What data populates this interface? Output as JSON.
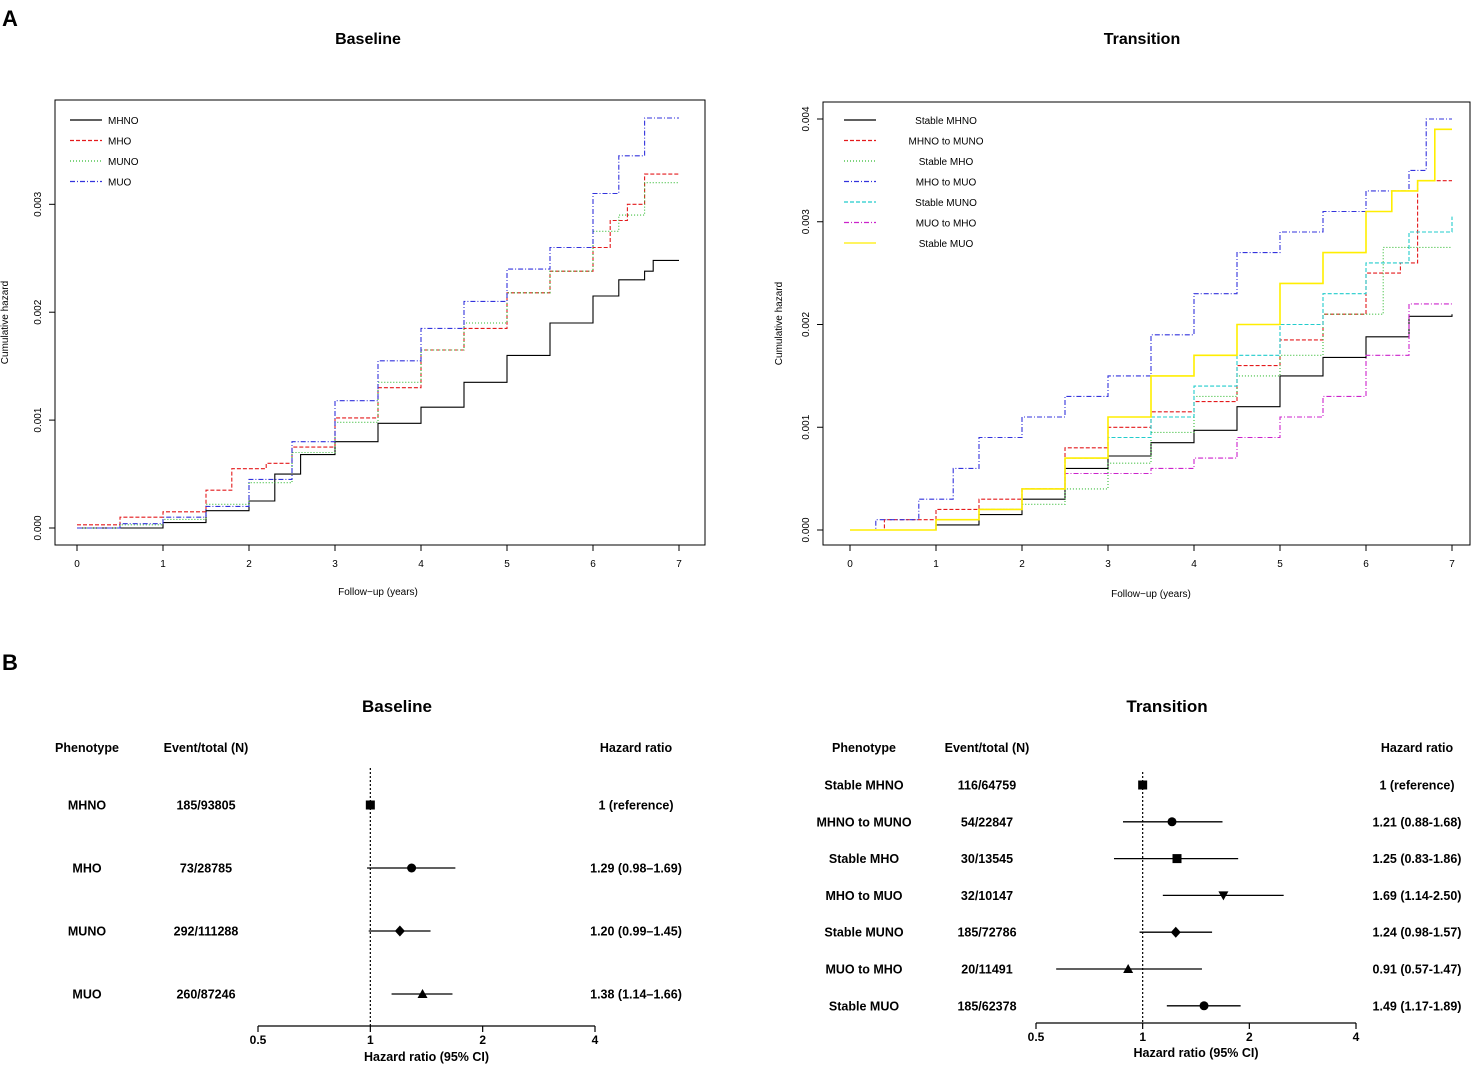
{
  "panel_labels": {
    "a": "A",
    "b": "B"
  },
  "chart_data": [
    {
      "id": "km_baseline",
      "type": "line",
      "title": "Baseline",
      "xlabel": "Follow−up (years)",
      "ylabel": "Cumulative hazard",
      "xlim": [
        0,
        7
      ],
      "ylim": [
        0,
        0.0038
      ],
      "xticks": [
        0,
        1,
        2,
        3,
        4,
        5,
        6,
        7
      ],
      "xtick_labels": [
        "0",
        "1",
        "2",
        "3",
        "4",
        "5",
        "6",
        "7"
      ],
      "yticks": [
        0,
        0.001,
        0.002,
        0.003
      ],
      "ytick_labels": [
        "0.000",
        "0.001",
        "0.002",
        "0.003"
      ],
      "legend_position": "top-left",
      "series": [
        {
          "name": "MHNO",
          "color": "#000000",
          "dash": "solid",
          "x": [
            0,
            1.0,
            1.5,
            2.0,
            2.3,
            2.6,
            3.0,
            3.5,
            4.0,
            4.5,
            5.0,
            5.5,
            6.0,
            6.3,
            6.6,
            6.7,
            7.0
          ],
          "y": [
            0,
            5e-05,
            0.00016,
            0.00025,
            0.0005,
            0.00068,
            0.0008,
            0.00097,
            0.00112,
            0.00135,
            0.0016,
            0.0019,
            0.00215,
            0.0023,
            0.00238,
            0.00248,
            0.00248
          ]
        },
        {
          "name": "MHO",
          "color": "#e41a1c",
          "dash": "dashed",
          "x": [
            0,
            0.5,
            1.0,
            1.5,
            1.8,
            2.2,
            2.5,
            3.0,
            3.5,
            4.0,
            4.5,
            5.0,
            5.5,
            6.0,
            6.2,
            6.4,
            6.6,
            7.0
          ],
          "y": [
            3e-05,
            0.0001,
            0.00015,
            0.00035,
            0.00055,
            0.0006,
            0.00075,
            0.00102,
            0.0013,
            0.00165,
            0.00185,
            0.00218,
            0.00238,
            0.0026,
            0.00285,
            0.003,
            0.00328,
            0.00328
          ]
        },
        {
          "name": "MUNO",
          "color": "#33bb33",
          "dash": "dotted",
          "x": [
            0,
            0.5,
            1.0,
            1.5,
            2.0,
            2.5,
            3.0,
            3.5,
            4.0,
            4.5,
            5.0,
            5.5,
            6.0,
            6.3,
            6.6,
            7.0
          ],
          "y": [
            0,
            3e-05,
            8e-05,
            0.00022,
            0.00042,
            0.0007,
            0.00098,
            0.00135,
            0.00165,
            0.0019,
            0.00218,
            0.00238,
            0.00275,
            0.0029,
            0.0032,
            0.0032
          ]
        },
        {
          "name": "MUO",
          "color": "#3333dd",
          "dash": "dotdash",
          "x": [
            0,
            0.5,
            1.0,
            1.5,
            2.0,
            2.5,
            3.0,
            3.5,
            4.0,
            4.5,
            5.0,
            5.5,
            6.0,
            6.3,
            6.6,
            7.0
          ],
          "y": [
            0,
            4e-05,
            0.0001,
            0.0002,
            0.00045,
            0.0008,
            0.00118,
            0.00155,
            0.00185,
            0.0021,
            0.0024,
            0.0026,
            0.0031,
            0.00345,
            0.0038,
            0.0038
          ]
        }
      ]
    },
    {
      "id": "km_transition",
      "type": "line",
      "title": "Transition",
      "xlabel": "Follow−up (years)",
      "ylabel": "Cumulative hazard",
      "xlim": [
        0,
        7
      ],
      "ylim": [
        0,
        0.004
      ],
      "xticks": [
        0,
        1,
        2,
        3,
        4,
        5,
        6,
        7
      ],
      "xtick_labels": [
        "0",
        "1",
        "2",
        "3",
        "4",
        "5",
        "6",
        "7"
      ],
      "yticks": [
        0,
        0.001,
        0.002,
        0.003,
        0.004
      ],
      "ytick_labels": [
        "0.000",
        "0.001",
        "0.002",
        "0.003",
        "0.004"
      ],
      "legend_position": "top-left",
      "series": [
        {
          "name": "Stable MHNO",
          "color": "#000000",
          "dash": "solid",
          "x": [
            0,
            1.0,
            1.5,
            2.0,
            2.5,
            3.0,
            3.5,
            4.0,
            4.5,
            5.0,
            5.5,
            6.0,
            6.5,
            7.0
          ],
          "y": [
            0,
            5e-05,
            0.00015,
            0.0003,
            0.0006,
            0.00072,
            0.00085,
            0.00097,
            0.0012,
            0.0015,
            0.00168,
            0.00188,
            0.00208,
            0.0021
          ]
        },
        {
          "name": "MHNO to MUNO",
          "color": "#e41a1c",
          "dash": "dashed",
          "x": [
            0,
            0.4,
            1.0,
            1.5,
            2.0,
            2.5,
            3.0,
            3.5,
            4.0,
            4.5,
            5.0,
            5.5,
            6.0,
            6.4,
            6.6,
            7.0
          ],
          "y": [
            0,
            0.0001,
            0.0002,
            0.0003,
            0.0004,
            0.0008,
            0.001,
            0.00115,
            0.00125,
            0.0016,
            0.00185,
            0.0021,
            0.0025,
            0.0026,
            0.0034,
            0.0034
          ]
        },
        {
          "name": "Stable MHO",
          "color": "#33bb33",
          "dash": "dotted",
          "x": [
            0,
            1.0,
            1.5,
            2.0,
            2.5,
            3.0,
            3.5,
            4.0,
            4.5,
            5.0,
            5.5,
            6.0,
            6.2,
            7.0
          ],
          "y": [
            0,
            0.0001,
            0.0002,
            0.00025,
            0.0004,
            0.00065,
            0.00095,
            0.0013,
            0.0015,
            0.0017,
            0.0021,
            0.0021,
            0.00275,
            0.00275
          ]
        },
        {
          "name": "MHO to MUO",
          "color": "#3333dd",
          "dash": "dotdash",
          "x": [
            0,
            0.3,
            0.8,
            1.2,
            1.5,
            2.0,
            2.5,
            3.0,
            3.5,
            4.0,
            4.5,
            5.0,
            5.5,
            6.0,
            6.5,
            6.7,
            7.0
          ],
          "y": [
            0,
            0.0001,
            0.0003,
            0.0006,
            0.0009,
            0.0011,
            0.0013,
            0.0015,
            0.0019,
            0.0023,
            0.0027,
            0.0029,
            0.0031,
            0.0033,
            0.0035,
            0.004,
            0.004
          ]
        },
        {
          "name": "Stable MUNO",
          "color": "#22cccc",
          "dash": "dashed",
          "x": [
            0,
            1.0,
            1.5,
            2.0,
            2.5,
            3.0,
            3.5,
            4.0,
            4.5,
            5.0,
            5.5,
            6.0,
            6.5,
            7.0
          ],
          "y": [
            0,
            0.0001,
            0.0002,
            0.0004,
            0.0007,
            0.0009,
            0.0011,
            0.0014,
            0.0017,
            0.002,
            0.0023,
            0.0026,
            0.0029,
            0.00305
          ]
        },
        {
          "name": "MUO to MHO",
          "color": "#cc22cc",
          "dash": "dotdash",
          "x": [
            0,
            1.0,
            1.5,
            2.0,
            2.5,
            3.0,
            3.5,
            4.0,
            4.5,
            5.0,
            5.5,
            6.0,
            6.5,
            7.0
          ],
          "y": [
            0,
            0.0001,
            0.0002,
            0.0004,
            0.00055,
            0.00055,
            0.0006,
            0.0007,
            0.0009,
            0.0011,
            0.0013,
            0.0017,
            0.0022,
            0.0022
          ]
        },
        {
          "name": "Stable MUO",
          "color": "#ffee00",
          "dash": "solid",
          "x": [
            0,
            1.0,
            1.5,
            2.0,
            2.5,
            3.0,
            3.5,
            4.0,
            4.5,
            5.0,
            5.5,
            6.0,
            6.3,
            6.6,
            6.8,
            7.0
          ],
          "y": [
            0,
            0.0001,
            0.0002,
            0.0004,
            0.0007,
            0.0011,
            0.0015,
            0.0017,
            0.002,
            0.0024,
            0.0027,
            0.0031,
            0.0033,
            0.0034,
            0.0039,
            0.0039
          ]
        }
      ]
    },
    {
      "id": "forest_baseline",
      "type": "forest",
      "title": "Baseline",
      "xlabel": "Hazard ratio (95% CI)",
      "headers": {
        "phenotype": "Phenotype",
        "events": "Event/total (N)",
        "hr": "Hazard ratio"
      },
      "scale": "log",
      "xlim": [
        0.5,
        4
      ],
      "xticks": [
        0.5,
        1,
        2,
        4
      ],
      "xtick_labels": [
        "0.5",
        "1",
        "2",
        "4"
      ],
      "reference": 1,
      "rows": [
        {
          "phenotype": "MHNO",
          "events": "185/93805",
          "hr": 1,
          "lo": 1,
          "hi": 1,
          "marker": "square",
          "label": "1 (reference)"
        },
        {
          "phenotype": "MHO",
          "events": "73/28785",
          "hr": 1.29,
          "lo": 0.98,
          "hi": 1.69,
          "marker": "circle",
          "label": "1.29 (0.98–1.69)"
        },
        {
          "phenotype": "MUNO",
          "events": "292/111288",
          "hr": 1.2,
          "lo": 0.99,
          "hi": 1.45,
          "marker": "diamond",
          "label": "1.20 (0.99–1.45)"
        },
        {
          "phenotype": "MUO",
          "events": "260/87246",
          "hr": 1.38,
          "lo": 1.14,
          "hi": 1.66,
          "marker": "triangle",
          "label": "1.38 (1.14–1.66)"
        }
      ]
    },
    {
      "id": "forest_transition",
      "type": "forest",
      "title": "Transition",
      "xlabel": "Hazard ratio (95% CI)",
      "headers": {
        "phenotype": "Phenotype",
        "events": "Event/total (N)",
        "hr": "Hazard ratio"
      },
      "scale": "log",
      "xlim": [
        0.5,
        4
      ],
      "xticks": [
        0.5,
        1,
        2,
        4
      ],
      "xtick_labels": [
        "0.5",
        "1",
        "2",
        "4"
      ],
      "reference": 1,
      "rows": [
        {
          "phenotype": "Stable MHNO",
          "events": "116/64759",
          "hr": 1,
          "lo": 1,
          "hi": 1,
          "marker": "square",
          "label": "1 (reference)"
        },
        {
          "phenotype": "MHNO to MUNO",
          "events": "54/22847",
          "hr": 1.21,
          "lo": 0.88,
          "hi": 1.68,
          "marker": "circle",
          "label": "1.21 (0.88-1.68)"
        },
        {
          "phenotype": "Stable MHO",
          "events": "30/13545",
          "hr": 1.25,
          "lo": 0.83,
          "hi": 1.86,
          "marker": "square",
          "label": "1.25 (0.83-1.86)"
        },
        {
          "phenotype": "MHO to MUO",
          "events": "32/10147",
          "hr": 1.69,
          "lo": 1.14,
          "hi": 2.5,
          "marker": "triangle-down",
          "label": "1.69 (1.14-2.50)"
        },
        {
          "phenotype": "Stable MUNO",
          "events": "185/72786",
          "hr": 1.24,
          "lo": 0.98,
          "hi": 1.57,
          "marker": "diamond",
          "label": "1.24 (0.98-1.57)"
        },
        {
          "phenotype": "MUO to MHO",
          "events": "20/11491",
          "hr": 0.91,
          "lo": 0.57,
          "hi": 1.47,
          "marker": "triangle",
          "label": "0.91 (0.57-1.47)"
        },
        {
          "phenotype": "Stable MUO",
          "events": "185/62378",
          "hr": 1.49,
          "lo": 1.17,
          "hi": 1.89,
          "marker": "circle",
          "label": "1.49 (1.17-1.89)"
        }
      ]
    }
  ]
}
